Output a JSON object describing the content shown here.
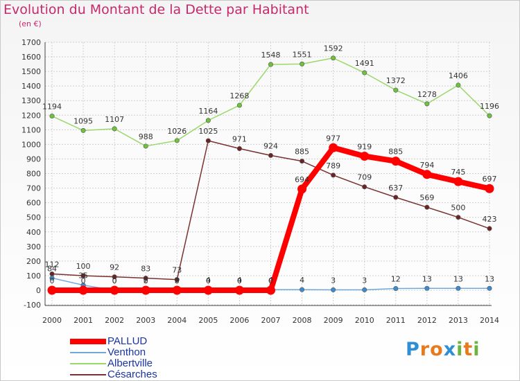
{
  "title": "Evolution du Montant de la Dette par Habitant",
  "subtitle": "(en €)",
  "logo": {
    "text": "Proxiti",
    "letters": [
      {
        "ch": "P",
        "color": "#2e8fd4"
      },
      {
        "ch": "r",
        "color": "#e87a1e"
      },
      {
        "ch": "o",
        "color": "#e87a1e"
      },
      {
        "ch": "x",
        "color": "#2e8fd4"
      },
      {
        "ch": "i",
        "color": "#6db33f"
      },
      {
        "ch": "t",
        "color": "#e87a1e"
      },
      {
        "ch": "i",
        "color": "#6db33f"
      }
    ]
  },
  "chart_data": {
    "type": "line",
    "x": [
      2000,
      2001,
      2002,
      2003,
      2004,
      2005,
      2006,
      2007,
      2008,
      2009,
      2010,
      2011,
      2012,
      2013,
      2014
    ],
    "ylim": [
      -100,
      1700
    ],
    "yticks": [
      -100,
      0,
      100,
      200,
      300,
      400,
      500,
      600,
      700,
      800,
      900,
      1000,
      1100,
      1200,
      1300,
      1400,
      1500,
      1600,
      1700
    ],
    "grid": true,
    "legend_position": "bottom-left",
    "series": [
      {
        "name": "Albertville",
        "color": "#9ad86a",
        "marker": "#6ec23e",
        "values": [
          1194,
          1095,
          1107,
          988,
          1026,
          1164,
          1268,
          1548,
          1551,
          1592,
          1491,
          1372,
          1278,
          1406,
          1196
        ]
      },
      {
        "name": "Césarches",
        "color": "#7a3030",
        "marker": "#6a2424",
        "values": [
          112,
          100,
          92,
          83,
          73,
          1025,
          971,
          924,
          885,
          789,
          709,
          637,
          569,
          500,
          423
        ]
      },
      {
        "name": "Venthon",
        "color": "#6fa8dc",
        "marker": "#3d8bd0",
        "values": [
          84,
          35,
          0,
          2,
          2,
          4,
          4,
          4,
          4,
          3,
          3,
          12,
          13,
          13,
          13
        ]
      },
      {
        "name": "PALLUD",
        "color": "#ff0000",
        "marker": "#ff0000",
        "values": [
          0,
          0,
          0,
          0,
          0,
          0,
          0,
          0,
          694,
          977,
          919,
          885,
          794,
          745,
          697
        ]
      }
    ],
    "data_labels": {
      "Albertville": [
        "1194",
        "1095",
        "1107",
        "988",
        "1026",
        "1164",
        "1268",
        "1548",
        "1551",
        "1592",
        "1491",
        "1372",
        "1278",
        "1406",
        "1196"
      ],
      "Césarches": [
        "112",
        "100",
        "92",
        "83",
        "73",
        "1025",
        "971",
        "924",
        "885",
        "789",
        "709",
        "637",
        "569",
        "500",
        "423"
      ],
      "Venthon": [
        "84",
        "35",
        "0",
        "2",
        "2",
        "4",
        "4",
        "4",
        "4",
        "3",
        "3",
        "12",
        "13",
        "13",
        "13"
      ],
      "PALLUD": [
        "0",
        "0",
        "0",
        "0",
        "0",
        "0",
        "0",
        "0",
        "694",
        "977",
        "919",
        "885",
        "794",
        "745",
        "697"
      ]
    },
    "legend": [
      "PALLUD",
      "Venthon",
      "Albertville",
      "Césarches"
    ]
  }
}
